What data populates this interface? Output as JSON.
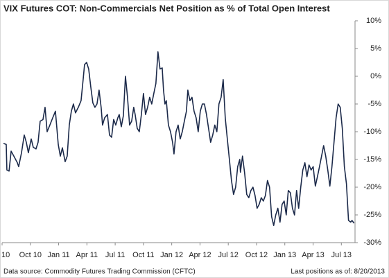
{
  "chart_data": {
    "type": "line",
    "title": "VIX Futures COT: Non-Commercials Net Position as % of Total Open Interest",
    "source": "Data source: Commodity Futures Trading Commission (CFTC)",
    "note": "Last positions as of: 8/20/2013",
    "xlim": [
      6,
      43.45
    ],
    "xticks": [
      {
        "value": 6,
        "label": "10"
      },
      {
        "value": 9,
        "label": "Oct 10"
      },
      {
        "value": 12,
        "label": "Jan 11"
      },
      {
        "value": 15,
        "label": "Apr 11"
      },
      {
        "value": 18,
        "label": "Jul 11"
      },
      {
        "value": 21,
        "label": "Oct 11"
      },
      {
        "value": 24,
        "label": "Jan 12"
      },
      {
        "value": 27,
        "label": "Apr 12"
      },
      {
        "value": 30,
        "label": "Jul 12"
      },
      {
        "value": 33,
        "label": "Oct 12"
      },
      {
        "value": 36,
        "label": "Jan 13"
      },
      {
        "value": 39,
        "label": "Apr 13"
      },
      {
        "value": 42,
        "label": "Jul 13"
      }
    ],
    "ylim": [
      -30,
      10
    ],
    "yticks": [
      {
        "value": -30,
        "label": "-30%"
      },
      {
        "value": -25,
        "label": "-25%"
      },
      {
        "value": -20,
        "label": "-20%"
      },
      {
        "value": -15,
        "label": "-15%"
      },
      {
        "value": -10,
        "label": "-10%"
      },
      {
        "value": -5,
        "label": "-5%"
      },
      {
        "value": 0,
        "label": "0%"
      },
      {
        "value": 5,
        "label": "5%"
      },
      {
        "value": 10,
        "label": "10%"
      }
    ],
    "color": "#1c2a4a",
    "x": [
      6.15,
      6.44,
      6.51,
      6.74,
      6.96,
      7.25,
      7.62,
      7.76,
      8.06,
      8.35,
      8.57,
      8.79,
      9.09,
      9.31,
      9.6,
      9.82,
      10.04,
      10.34,
      10.56,
      10.78,
      11.07,
      11.37,
      11.66,
      11.96,
      12.18,
      12.4,
      12.69,
      12.91,
      13.13,
      13.35,
      13.57,
      13.79,
      14.09,
      14.38,
      14.6,
      14.75,
      14.97,
      15.19,
      15.41,
      15.63,
      15.85,
      16.07,
      16.29,
      16.51,
      16.66,
      16.88,
      17.18,
      17.4,
      17.62,
      17.84,
      18.06,
      18.28,
      18.43,
      18.65,
      18.87,
      19.09,
      19.31,
      19.53,
      19.75,
      19.97,
      20.12,
      20.34,
      20.56,
      20.78,
      21.0,
      21.22,
      21.44,
      21.66,
      21.88,
      22.1,
      22.32,
      22.54,
      22.76,
      22.99,
      23.13,
      23.28,
      23.43,
      23.65,
      23.87,
      24.09,
      24.24,
      24.46,
      24.68,
      24.9,
      25.12,
      25.34,
      25.56,
      25.71,
      25.93,
      26.15,
      26.37,
      26.59,
      26.81,
      27.03,
      27.25,
      27.47,
      27.69,
      27.91,
      28.13,
      28.35,
      28.57,
      28.79,
      29.01,
      29.24,
      29.46,
      29.68,
      29.9,
      30.12,
      30.34,
      30.56,
      30.78,
      31.0,
      31.22,
      31.29,
      31.51,
      31.74,
      31.96,
      32.18,
      32.4,
      32.62,
      32.84,
      33.06,
      33.28,
      33.5,
      33.72,
      33.94,
      34.16,
      34.38,
      34.6,
      34.82,
      35.04,
      35.26,
      35.49,
      35.71,
      35.93,
      36.15,
      36.37,
      36.59,
      36.81,
      37.03,
      37.25,
      37.47,
      37.69,
      37.91,
      38.13,
      38.35,
      38.57,
      38.79,
      39.01,
      39.24,
      39.46,
      39.68,
      39.9,
      40.12,
      40.34,
      40.56,
      40.78,
      41.0,
      41.22,
      41.44,
      41.66,
      41.88,
      42.1,
      42.32,
      42.54,
      42.76,
      42.99,
      43.13,
      43.35
    ],
    "values": [
      -12.1,
      -12.3,
      -16.9,
      -17.1,
      -13.5,
      -14.4,
      -15.6,
      -16.3,
      -13.8,
      -10.6,
      -11.9,
      -13.8,
      -11.3,
      -12.8,
      -13.1,
      -11.9,
      -8.1,
      -7.8,
      -5.6,
      -10.0,
      -8.8,
      -7.5,
      -6.3,
      -12.3,
      -14.4,
      -12.9,
      -15.4,
      -14.4,
      -8.8,
      -6.3,
      -5.0,
      -6.6,
      -5.6,
      -4.4,
      -0.6,
      2.1,
      2.5,
      1.3,
      -1.9,
      -4.8,
      -5.6,
      -5.0,
      -2.5,
      -5.6,
      -8.8,
      -7.5,
      -6.9,
      -10.6,
      -11.0,
      -7.8,
      -8.8,
      -7.5,
      -6.9,
      -9.1,
      -7.1,
      0.0,
      -3.8,
      -8.8,
      -8.1,
      -5.6,
      -6.9,
      -9.4,
      -10.0,
      -6.9,
      -3.1,
      -6.9,
      -5.6,
      -3.8,
      -5.0,
      -3.1,
      -1.3,
      4.4,
      1.3,
      1.5,
      -2.5,
      -5.0,
      -4.4,
      -8.8,
      -10.0,
      -11.9,
      -14.0,
      -10.0,
      -8.8,
      -11.3,
      -10.0,
      -8.1,
      -6.3,
      -2.5,
      -4.4,
      -3.8,
      -6.3,
      -7.5,
      -10.0,
      -6.3,
      -5.0,
      -5.0,
      -6.9,
      -9.4,
      -11.9,
      -10.6,
      -8.8,
      -10.0,
      -5.0,
      -3.8,
      -0.6,
      -7.5,
      -11.3,
      -15.0,
      -18.8,
      -21.3,
      -20.0,
      -16.3,
      -15.0,
      -17.3,
      -14.4,
      -17.5,
      -21.3,
      -21.9,
      -20.6,
      -20.0,
      -21.5,
      -23.8,
      -23.1,
      -21.9,
      -22.5,
      -21.5,
      -18.8,
      -20.0,
      -25.3,
      -26.9,
      -25.0,
      -23.8,
      -26.3,
      -23.1,
      -22.5,
      -25.0,
      -20.6,
      -21.0,
      -23.8,
      -25.0,
      -20.6,
      -23.8,
      -20.0,
      -16.9,
      -15.6,
      -18.1,
      -16.0,
      -16.9,
      -16.3,
      -19.8,
      -18.1,
      -16.3,
      -14.4,
      -12.5,
      -14.4,
      -16.9,
      -19.8,
      -16.3,
      -11.9,
      -7.5,
      -5.0,
      -5.6,
      -9.4,
      -16.3,
      -19.4,
      -26.0,
      -26.3,
      -26.0,
      -26.5
    ]
  }
}
